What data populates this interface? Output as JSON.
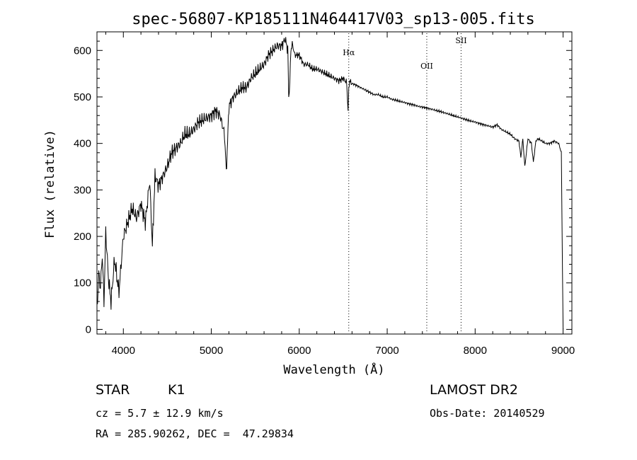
{
  "chart_data": {
    "type": "line",
    "title": "spec-56807-KP185111N464417V03_sp13-005.fits",
    "xlabel": "Wavelength (Å)",
    "ylabel": "Flux (relative)",
    "xlim": [
      3700,
      9100
    ],
    "ylim": [
      -10,
      640
    ],
    "xticks": [
      4000,
      5000,
      6000,
      7000,
      8000,
      9000
    ],
    "yticks": [
      0,
      100,
      200,
      300,
      400,
      500,
      600
    ],
    "grid": false,
    "line_color": "#000000",
    "series": [
      {
        "x": [
          3700,
          3720,
          3740,
          3760,
          3780,
          3800,
          3830,
          3860,
          3900,
          3950,
          4000,
          4050,
          4100,
          4150,
          4200,
          4250,
          4300,
          4330,
          4360,
          4400,
          4450,
          4500,
          4550,
          4600,
          4650,
          4700,
          4750,
          4800,
          4850,
          4900,
          4950,
          5000,
          5050,
          5100,
          5150,
          5170,
          5185,
          5200,
          5250,
          5300,
          5350,
          5400,
          5450,
          5500,
          5550,
          5600,
          5650,
          5700,
          5750,
          5800,
          5840,
          5870,
          5880,
          5893,
          5905,
          5920,
          5950,
          6000,
          6050,
          6100,
          6150,
          6200,
          6250,
          6300,
          6350,
          6400,
          6450,
          6500,
          6540,
          6555,
          6563,
          6572,
          6590,
          6650,
          6700,
          6750,
          6800,
          6850,
          6900,
          6950,
          7000,
          7050,
          7100,
          7150,
          7200,
          7250,
          7300,
          7350,
          7400,
          7450,
          7500,
          7550,
          7600,
          7650,
          7700,
          7750,
          7800,
          7850,
          7900,
          7950,
          8000,
          8050,
          8100,
          8150,
          8200,
          8250,
          8300,
          8350,
          8400,
          8450,
          8498,
          8520,
          8542,
          8565,
          8600,
          8640,
          8662,
          8690,
          8720,
          8760,
          8800,
          8850,
          8900,
          8950,
          8980,
          9000
        ],
        "y": [
          40,
          120,
          90,
          160,
          60,
          210,
          110,
          60,
          150,
          80,
          200,
          230,
          260,
          240,
          270,
          230,
          320,
          180,
          330,
          310,
          330,
          350,
          380,
          390,
          400,
          420,
          420,
          430,
          445,
          450,
          455,
          460,
          470,
          460,
          420,
          340,
          400,
          480,
          500,
          510,
          520,
          520,
          540,
          550,
          560,
          570,
          590,
          600,
          610,
          610,
          625,
          600,
          500,
          530,
          600,
          615,
          590,
          590,
          570,
          570,
          560,
          560,
          555,
          550,
          545,
          540,
          535,
          540,
          530,
          470,
          520,
          535,
          530,
          525,
          520,
          515,
          510,
          505,
          505,
          500,
          500,
          495,
          493,
          490,
          488,
          485,
          483,
          480,
          478,
          476,
          474,
          471,
          469,
          466,
          463,
          460,
          457,
          454,
          451,
          448,
          446,
          443,
          440,
          438,
          435,
          440,
          430,
          425,
          420,
          410,
          405,
          370,
          410,
          350,
          410,
          400,
          360,
          405,
          410,
          405,
          400,
          400,
          405,
          400,
          380,
          0
        ]
      }
    ],
    "vlines": [
      {
        "x": 6563,
        "label": "Hα"
      },
      {
        "x": 7450,
        "label": "OII"
      },
      {
        "x": 7840,
        "label": "SII"
      }
    ]
  },
  "footer": {
    "object_type": "STAR",
    "subclass": "K1",
    "survey": "LAMOST DR2",
    "cz": "cz = 5.7 ± 12.9 km/s",
    "obs_date": "Obs-Date: 20140529",
    "coords": "RA = 285.90262, DEC =  47.29834"
  }
}
